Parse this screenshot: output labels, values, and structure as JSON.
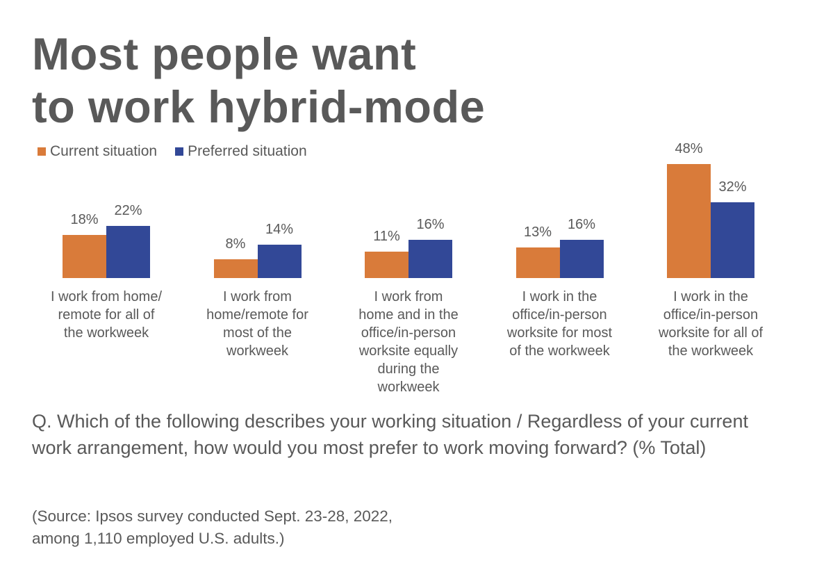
{
  "chart_data": {
    "type": "bar",
    "title": "Most people want to work hybrid-mode",
    "categories": [
      "I work from home/\nremote for all of\nthe workweek",
      "I work from\nhome/remote for\nmost of the\nworkweek",
      "I work from\nhome and in the\noffice/in-person\nworksite equally\nduring the\nworkweek",
      "I work in the\noffice/in-person\nworksite for most\nof the workweek",
      "I work in the\noffice/in-person\nworksite for all of\nthe workweek"
    ],
    "series": [
      {
        "name": "Current situation",
        "color": "#D97B3A",
        "values": [
          18,
          8,
          11,
          13,
          48
        ],
        "labels": [
          "18%",
          "8%",
          "11%",
          "13%",
          "48%"
        ]
      },
      {
        "name": "Preferred situation",
        "color": "#324897",
        "values": [
          22,
          14,
          16,
          16,
          32
        ],
        "labels": [
          "22%",
          "14%",
          "16%",
          "16%",
          "32%"
        ]
      }
    ],
    "ylim": [
      0,
      48
    ],
    "unit": "%",
    "legend_position": "top-left",
    "grid": false,
    "question": "Q. Which of the following describes your working situation / Regardless of your current work arrangement, how would you most prefer to work moving forward? (% Total)",
    "source": "(Source: Ipsos survey conducted Sept. 23-28, 2022,\namong 1,110 employed U.S. adults.)"
  }
}
